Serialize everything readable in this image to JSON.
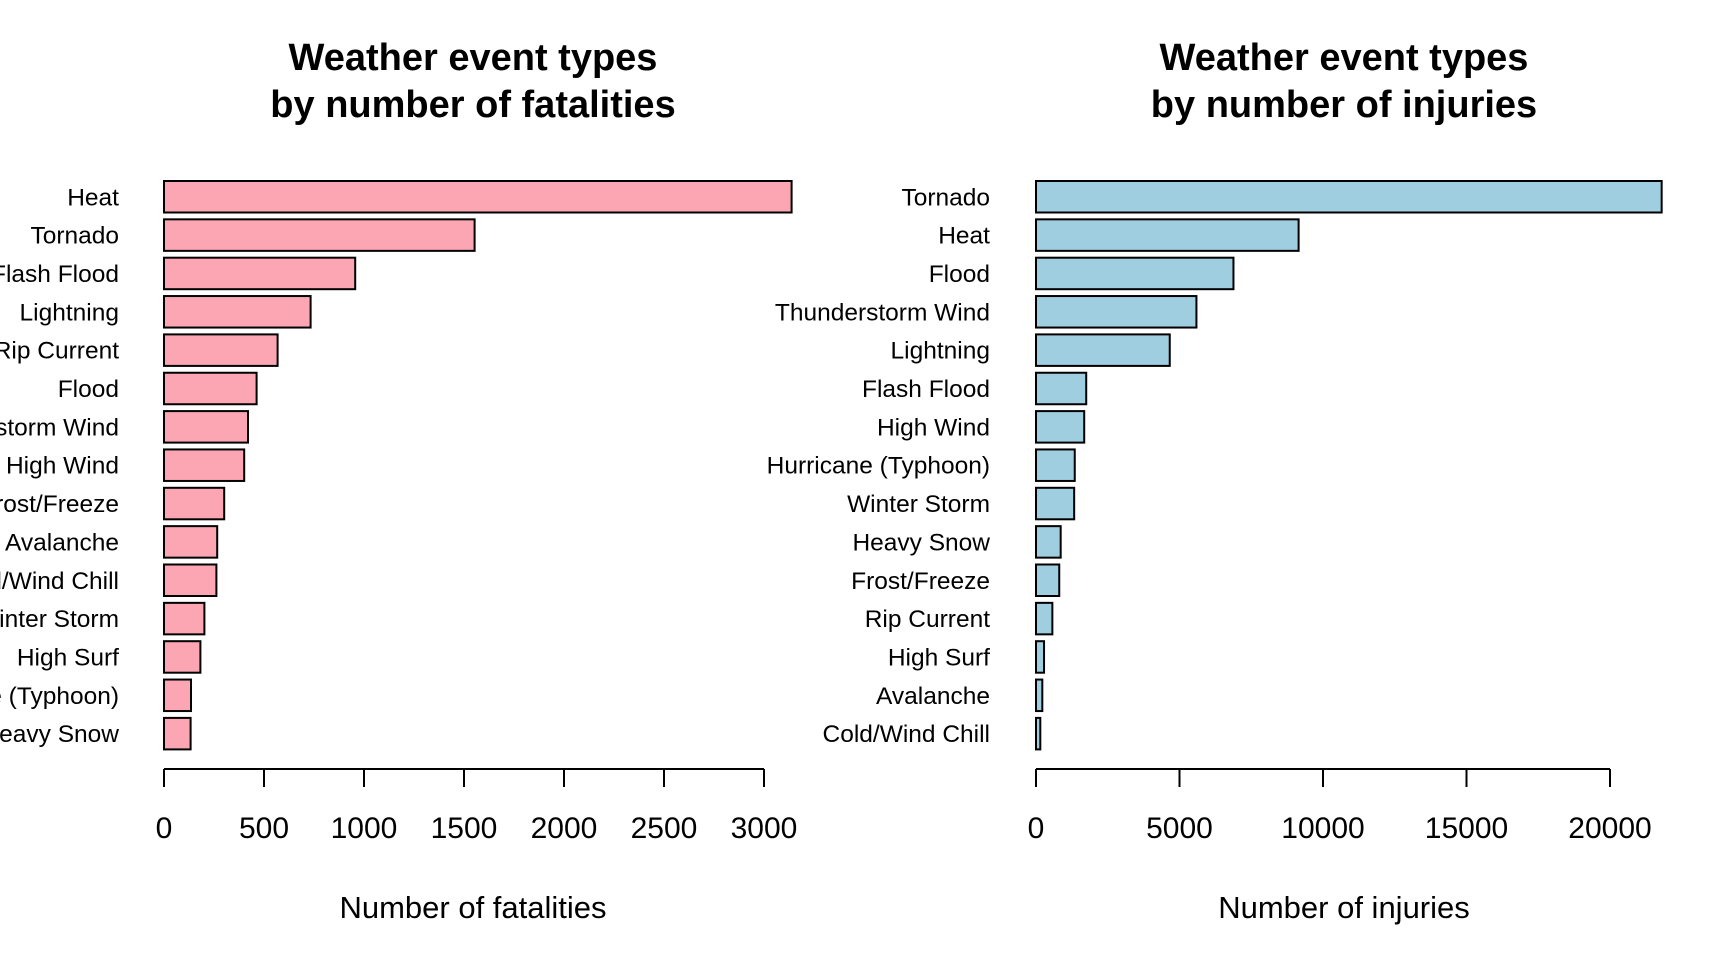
{
  "chart_data": [
    {
      "type": "bar",
      "orientation": "horizontal",
      "title_lines": [
        "Weather event types",
        "by number of fatalities"
      ],
      "xlabel": "Number of fatalities",
      "ylabel": "",
      "xlim": [
        0,
        3000
      ],
      "xticks": [
        0,
        500,
        1000,
        1500,
        2000,
        2500,
        3000
      ],
      "xtick_labels": [
        "0",
        "500",
        "1000",
        "1500",
        "2000",
        "2500",
        "3000"
      ],
      "bar_color": "#fca6b4",
      "categories": [
        "Heat",
        "Tornado",
        "Flash Flood",
        "Lightning",
        "Rip Current",
        "Flood",
        "Thunderstorm Wind",
        "High Wind",
        "Frost/Freeze",
        "Avalanche",
        "Cold/Wind Chill",
        "Winter Storm",
        "High Surf",
        "Hurricane (Typhoon)",
        "Heavy Snow"
      ],
      "values": [
        3138,
        1553,
        956,
        733,
        568,
        463,
        420,
        401,
        301,
        266,
        262,
        202,
        182,
        135,
        133
      ],
      "grid": false
    },
    {
      "type": "bar",
      "orientation": "horizontal",
      "title_lines": [
        "Weather event types",
        "by number of injuries"
      ],
      "xlabel": "Number of injuries",
      "ylabel": "",
      "xlim": [
        0,
        20000
      ],
      "xticks": [
        0,
        5000,
        10000,
        15000,
        20000
      ],
      "xtick_labels": [
        "0",
        "5000",
        "10000",
        "15000",
        "20000"
      ],
      "bar_color": "#9fcee0",
      "categories": [
        "Tornado",
        "Heat",
        "Flood",
        "Thunderstorm Wind",
        "Lightning",
        "Flash Flood",
        "High Wind",
        "Hurricane (Typhoon)",
        "Winter Storm",
        "Heavy Snow",
        "Frost/Freeze",
        "Rip Current",
        "High Surf",
        "Avalanche",
        "Cold/Wind Chill"
      ],
      "values": [
        21800,
        9150,
        6880,
        5590,
        4660,
        1750,
        1680,
        1350,
        1330,
        860,
        810,
        570,
        280,
        220,
        150
      ],
      "grid": false
    }
  ]
}
